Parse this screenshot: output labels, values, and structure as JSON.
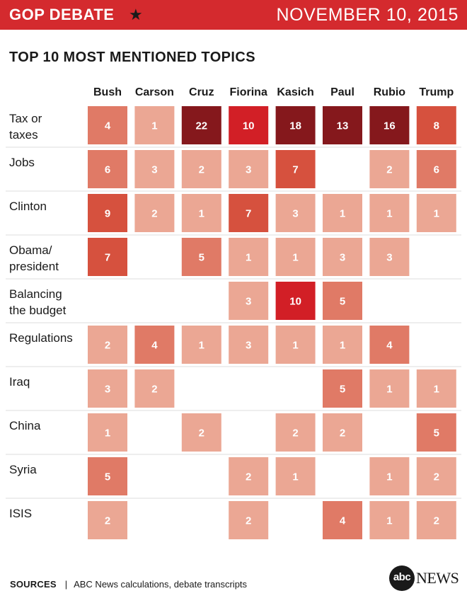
{
  "header": {
    "title": "GOP DEBATE",
    "star": "★",
    "date": "NOVEMBER 10, 2015"
  },
  "chart_data": {
    "type": "heatmap",
    "title": "TOP 10 MOST MENTIONED TOPICS",
    "columns": [
      "Bush",
      "Carson",
      "Cruz",
      "Fiorina",
      "Kasich",
      "Paul",
      "Rubio",
      "Trump"
    ],
    "rows": [
      {
        "label": [
          "Tax or",
          "taxes"
        ],
        "values": [
          4,
          1,
          22,
          10,
          18,
          13,
          16,
          8
        ]
      },
      {
        "label": [
          "Jobs"
        ],
        "values": [
          6,
          3,
          2,
          3,
          7,
          null,
          2,
          6
        ]
      },
      {
        "label": [
          "Clinton"
        ],
        "values": [
          9,
          2,
          1,
          7,
          3,
          1,
          1,
          1
        ]
      },
      {
        "label": [
          "Obama/",
          "president"
        ],
        "values": [
          7,
          null,
          5,
          1,
          1,
          3,
          3,
          null
        ]
      },
      {
        "label": [
          "Balancing",
          "the budget"
        ],
        "values": [
          null,
          null,
          null,
          3,
          10,
          5,
          null,
          null
        ]
      },
      {
        "label": [
          "Regulations"
        ],
        "values": [
          2,
          4,
          1,
          3,
          1,
          1,
          4,
          null
        ]
      },
      {
        "label": [
          "Iraq"
        ],
        "values": [
          3,
          2,
          null,
          null,
          null,
          5,
          1,
          1
        ]
      },
      {
        "label": [
          "China"
        ],
        "values": [
          1,
          null,
          2,
          null,
          2,
          2,
          null,
          5
        ]
      },
      {
        "label": [
          "Syria"
        ],
        "values": [
          5,
          null,
          null,
          2,
          1,
          null,
          1,
          2
        ]
      },
      {
        "label": [
          "ISIS"
        ],
        "values": [
          2,
          null,
          null,
          2,
          null,
          4,
          1,
          2
        ]
      }
    ],
    "color_scale": [
      {
        "max": 3,
        "color": "#eba794"
      },
      {
        "max": 6,
        "color": "#e07a66"
      },
      {
        "max": 9,
        "color": "#d6513e"
      },
      {
        "max": 10,
        "color": "#d21f26"
      },
      {
        "max": 99,
        "color": "#85181c"
      }
    ]
  },
  "footer": {
    "sources_label": "SOURCES",
    "separator": "|",
    "sources_text": "ABC News calculations, debate transcripts"
  },
  "logo": {
    "circle_text": "abc",
    "news_text": "NEWS"
  }
}
